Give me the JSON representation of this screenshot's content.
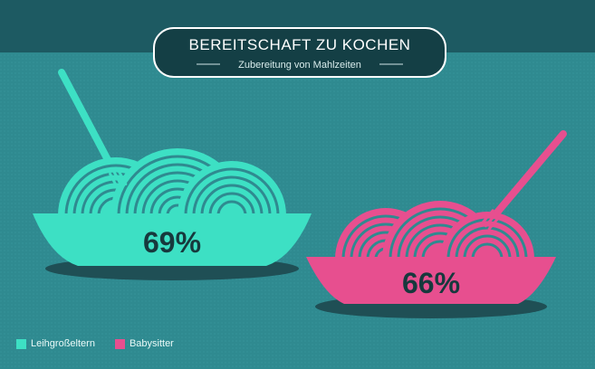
{
  "chart_data": {
    "type": "bar",
    "title": "BEREITSCHAFT ZU KOCHEN",
    "subtitle": "Zubereitung von Mahlzeiten",
    "categories": [
      "Leihgroßeltern",
      "Babysitter"
    ],
    "values": [
      69,
      66
    ],
    "data_labels": [
      "69%",
      "66%"
    ],
    "legend": [
      {
        "label": "Leihgroßeltern",
        "color": "#3de0c4"
      },
      {
        "label": "Babysitter",
        "color": "#e74f8f"
      }
    ],
    "legend_position": "bottom-left"
  },
  "colors": {
    "background": "#2f8a90",
    "header_band": "#1d5a62",
    "title_box": "#143f45",
    "shadow": "#1f4f55",
    "label_text": "#17393d"
  }
}
